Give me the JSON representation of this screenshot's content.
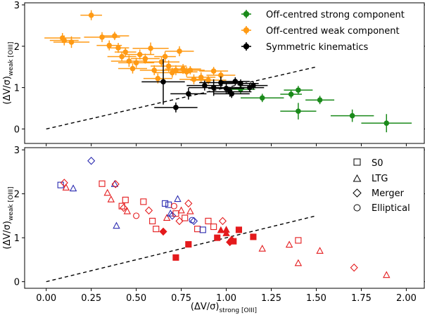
{
  "chart_data": [
    {
      "type": "scatter",
      "panel": "top",
      "xlim": [
        -0.12,
        2.1
      ],
      "ylim": [
        -0.35,
        3.05
      ],
      "yticks": [
        "0",
        "1",
        "2",
        "3"
      ],
      "ylabel": "(ΔV/σ)",
      "ylabel_sub": "weak [OIII]",
      "reference_line": {
        "style": "dashed",
        "from": [
          0.0,
          0.0
        ],
        "to": [
          1.5,
          1.5
        ]
      },
      "legend": {
        "placement": "top-right"
      },
      "series": [
        {
          "name": "Off-centred strong component",
          "color": "#1a8a1a",
          "points": [
            {
              "x": 1.36,
              "y": 0.84,
              "xerr": 0.06,
              "yerr": 0.1
            },
            {
              "x": 1.4,
              "y": 0.94,
              "xerr": 0.08,
              "yerr": 0.1
            },
            {
              "x": 1.4,
              "y": 0.43,
              "xerr": 0.1,
              "yerr": 0.2
            },
            {
              "x": 1.52,
              "y": 0.7,
              "xerr": 0.08,
              "yerr": 0.1
            },
            {
              "x": 1.7,
              "y": 0.32,
              "xerr": 0.12,
              "yerr": 0.15
            },
            {
              "x": 1.89,
              "y": 0.14,
              "xerr": 0.14,
              "yerr": 0.22
            },
            {
              "x": 1.2,
              "y": 0.75,
              "xerr": 0.12,
              "yerr": 0.1
            },
            {
              "x": 1.08,
              "y": 0.96,
              "xerr": 0.08,
              "yerr": 0.1
            }
          ]
        },
        {
          "name": "Off-centred weak component",
          "color": "#ff9a14",
          "points": [
            {
              "x": 0.25,
              "y": 2.75,
              "xerr": 0.06,
              "yerr": 0.12
            },
            {
              "x": 0.09,
              "y": 2.2,
              "xerr": 0.1,
              "yerr": 0.12
            },
            {
              "x": 0.1,
              "y": 2.14,
              "xerr": 0.08,
              "yerr": 0.12
            },
            {
              "x": 0.14,
              "y": 2.1,
              "xerr": 0.1,
              "yerr": 0.14
            },
            {
              "x": 0.31,
              "y": 2.22,
              "xerr": 0.1,
              "yerr": 0.12
            },
            {
              "x": 0.35,
              "y": 2.02,
              "xerr": 0.07,
              "yerr": 0.12
            },
            {
              "x": 0.38,
              "y": 2.25,
              "xerr": 0.08,
              "yerr": 0.1
            },
            {
              "x": 0.4,
              "y": 1.96,
              "xerr": 0.06,
              "yerr": 0.12
            },
            {
              "x": 0.42,
              "y": 1.75,
              "xerr": 0.08,
              "yerr": 0.12
            },
            {
              "x": 0.44,
              "y": 1.86,
              "xerr": 0.06,
              "yerr": 0.1
            },
            {
              "x": 0.46,
              "y": 1.64,
              "xerr": 0.1,
              "yerr": 0.14
            },
            {
              "x": 0.48,
              "y": 1.46,
              "xerr": 0.08,
              "yerr": 0.12
            },
            {
              "x": 0.5,
              "y": 1.6,
              "xerr": 0.1,
              "yerr": 0.12
            },
            {
              "x": 0.52,
              "y": 1.8,
              "xerr": 0.08,
              "yerr": 0.12
            },
            {
              "x": 0.55,
              "y": 1.7,
              "xerr": 0.08,
              "yerr": 0.12
            },
            {
              "x": 0.58,
              "y": 1.95,
              "xerr": 0.1,
              "yerr": 0.14
            },
            {
              "x": 0.6,
              "y": 1.42,
              "xerr": 0.08,
              "yerr": 0.12
            },
            {
              "x": 0.62,
              "y": 1.22,
              "xerr": 0.08,
              "yerr": 0.12
            },
            {
              "x": 0.64,
              "y": 1.62,
              "xerr": 0.1,
              "yerr": 0.12
            },
            {
              "x": 0.66,
              "y": 1.75,
              "xerr": 0.06,
              "yerr": 0.12
            },
            {
              "x": 0.68,
              "y": 1.52,
              "xerr": 0.1,
              "yerr": 0.14
            },
            {
              "x": 0.7,
              "y": 1.36,
              "xerr": 0.1,
              "yerr": 0.12
            },
            {
              "x": 0.72,
              "y": 1.42,
              "xerr": 0.08,
              "yerr": 0.12
            },
            {
              "x": 0.74,
              "y": 1.88,
              "xerr": 0.08,
              "yerr": 0.12
            },
            {
              "x": 0.76,
              "y": 1.45,
              "xerr": 0.1,
              "yerr": 0.12
            },
            {
              "x": 0.78,
              "y": 1.38,
              "xerr": 0.06,
              "yerr": 0.12
            },
            {
              "x": 0.8,
              "y": 1.42,
              "xerr": 0.08,
              "yerr": 0.1
            },
            {
              "x": 0.82,
              "y": 1.2,
              "xerr": 0.08,
              "yerr": 0.12
            },
            {
              "x": 0.86,
              "y": 1.25,
              "xerr": 0.08,
              "yerr": 0.12
            },
            {
              "x": 0.9,
              "y": 1.18,
              "xerr": 0.1,
              "yerr": 0.1
            },
            {
              "x": 0.93,
              "y": 1.4,
              "xerr": 0.08,
              "yerr": 0.1
            },
            {
              "x": 0.97,
              "y": 1.3,
              "xerr": 0.08,
              "yerr": 0.1
            }
          ]
        },
        {
          "name": "Symmetric kinematics",
          "color": "#000000",
          "points": [
            {
              "x": 0.65,
              "y": 1.14,
              "xerr": 0.12,
              "yerr": 0.55
            },
            {
              "x": 0.72,
              "y": 0.52,
              "xerr": 0.12,
              "yerr": 0.12
            },
            {
              "x": 0.79,
              "y": 0.85,
              "xerr": 0.1,
              "yerr": 0.14
            },
            {
              "x": 0.88,
              "y": 1.05,
              "xerr": 0.1,
              "yerr": 0.12
            },
            {
              "x": 0.93,
              "y": 1.0,
              "xerr": 0.14,
              "yerr": 0.2
            },
            {
              "x": 0.97,
              "y": 1.12,
              "xerr": 0.12,
              "yerr": 0.15
            },
            {
              "x": 1.0,
              "y": 0.98,
              "xerr": 0.1,
              "yerr": 0.12
            },
            {
              "x": 1.02,
              "y": 0.9,
              "xerr": 0.12,
              "yerr": 0.12
            },
            {
              "x": 1.03,
              "y": 0.85,
              "xerr": 0.1,
              "yerr": 0.1
            },
            {
              "x": 1.05,
              "y": 1.15,
              "xerr": 0.08,
              "yerr": 0.1
            },
            {
              "x": 1.08,
              "y": 1.1,
              "xerr": 0.1,
              "yerr": 0.1
            },
            {
              "x": 1.13,
              "y": 1.0,
              "xerr": 0.08,
              "yerr": 0.1
            },
            {
              "x": 1.15,
              "y": 1.05,
              "xerr": 0.08,
              "yerr": 0.1
            }
          ]
        }
      ]
    },
    {
      "type": "scatter",
      "panel": "bottom",
      "xlim": [
        -0.12,
        2.1
      ],
      "ylim": [
        -0.15,
        3.05
      ],
      "xticks": [
        "0.00",
        "0.25",
        "0.50",
        "0.75",
        "1.00",
        "1.25",
        "1.50",
        "1.75",
        "2.00"
      ],
      "yticks": [
        "0",
        "1",
        "2",
        "3"
      ],
      "xlabel": "(ΔV/σ)",
      "xlabel_sub": "strong [OIII]",
      "ylabel": "(ΔV/σ)",
      "ylabel_sub": "weak [OIII]",
      "reference_line": {
        "style": "dashed",
        "from": [
          0.0,
          0.0
        ],
        "to": [
          1.5,
          1.5
        ]
      },
      "legend": {
        "placement": "top-right",
        "entries": [
          {
            "name": "S0",
            "marker": "square"
          },
          {
            "name": "LTG",
            "marker": "triangle"
          },
          {
            "name": "Merger",
            "marker": "diamond"
          },
          {
            "name": "Elliptical",
            "marker": "circle"
          }
        ]
      },
      "colors": {
        "red": "#e41a1c",
        "blue": "#2a2ab0"
      },
      "points": [
        {
          "x": 0.25,
          "y": 2.75,
          "m": "diamond",
          "c": "blue",
          "f": false
        },
        {
          "x": 0.08,
          "y": 2.2,
          "m": "square",
          "c": "blue",
          "f": false
        },
        {
          "x": 0.1,
          "y": 2.25,
          "m": "diamond",
          "c": "red",
          "f": false
        },
        {
          "x": 0.11,
          "y": 2.14,
          "m": "triangle",
          "c": "red",
          "f": false
        },
        {
          "x": 0.15,
          "y": 2.12,
          "m": "triangle",
          "c": "blue",
          "f": false
        },
        {
          "x": 0.31,
          "y": 2.23,
          "m": "square",
          "c": "red",
          "f": false
        },
        {
          "x": 0.34,
          "y": 2.02,
          "m": "triangle",
          "c": "red",
          "f": false
        },
        {
          "x": 0.36,
          "y": 1.87,
          "m": "triangle",
          "c": "red",
          "f": false
        },
        {
          "x": 0.38,
          "y": 2.22,
          "m": "triangle",
          "c": "blue",
          "f": false
        },
        {
          "x": 0.385,
          "y": 2.22,
          "m": "diamond",
          "c": "red",
          "f": false
        },
        {
          "x": 0.39,
          "y": 1.27,
          "m": "triangle",
          "c": "blue",
          "f": false
        },
        {
          "x": 0.42,
          "y": 1.72,
          "m": "square",
          "c": "red",
          "f": false
        },
        {
          "x": 0.43,
          "y": 1.68,
          "m": "diamond",
          "c": "red",
          "f": false
        },
        {
          "x": 0.44,
          "y": 1.86,
          "m": "square",
          "c": "red",
          "f": false
        },
        {
          "x": 0.45,
          "y": 1.6,
          "m": "triangle",
          "c": "red",
          "f": false
        },
        {
          "x": 0.5,
          "y": 1.5,
          "m": "circle",
          "c": "red",
          "f": false
        },
        {
          "x": 0.54,
          "y": 1.82,
          "m": "square",
          "c": "red",
          "f": false
        },
        {
          "x": 0.57,
          "y": 1.62,
          "m": "diamond",
          "c": "red",
          "f": false
        },
        {
          "x": 0.59,
          "y": 1.38,
          "m": "square",
          "c": "red",
          "f": false
        },
        {
          "x": 0.61,
          "y": 1.2,
          "m": "square",
          "c": "red",
          "f": false
        },
        {
          "x": 0.65,
          "y": 1.14,
          "m": "diamond",
          "c": "red",
          "f": true
        },
        {
          "x": 0.66,
          "y": 1.78,
          "m": "square",
          "c": "blue",
          "f": false
        },
        {
          "x": 0.67,
          "y": 1.45,
          "m": "triangle",
          "c": "red",
          "f": false
        },
        {
          "x": 0.68,
          "y": 1.75,
          "m": "square",
          "c": "blue",
          "f": false
        },
        {
          "x": 0.69,
          "y": 1.55,
          "m": "triangle",
          "c": "blue",
          "f": false
        },
        {
          "x": 0.7,
          "y": 1.5,
          "m": "diamond",
          "c": "blue",
          "f": false
        },
        {
          "x": 0.71,
          "y": 1.72,
          "m": "circle",
          "c": "red",
          "f": false
        },
        {
          "x": 0.72,
          "y": 1.55,
          "m": "square",
          "c": "red",
          "f": false
        },
        {
          "x": 0.72,
          "y": 0.55,
          "m": "square",
          "c": "red",
          "f": true
        },
        {
          "x": 0.73,
          "y": 1.88,
          "m": "triangle",
          "c": "blue",
          "f": false
        },
        {
          "x": 0.74,
          "y": 1.38,
          "m": "diamond",
          "c": "red",
          "f": false
        },
        {
          "x": 0.75,
          "y": 1.62,
          "m": "triangle",
          "c": "red",
          "f": false
        },
        {
          "x": 0.77,
          "y": 1.45,
          "m": "square",
          "c": "red",
          "f": false
        },
        {
          "x": 0.79,
          "y": 1.78,
          "m": "diamond",
          "c": "red",
          "f": false
        },
        {
          "x": 0.8,
          "y": 1.6,
          "m": "triangle",
          "c": "red",
          "f": false
        },
        {
          "x": 0.81,
          "y": 1.4,
          "m": "circle",
          "c": "blue",
          "f": false
        },
        {
          "x": 0.82,
          "y": 1.38,
          "m": "diamond",
          "c": "blue",
          "f": false
        },
        {
          "x": 0.79,
          "y": 0.85,
          "m": "square",
          "c": "red",
          "f": true
        },
        {
          "x": 0.84,
          "y": 1.2,
          "m": "square",
          "c": "red",
          "f": false
        },
        {
          "x": 0.87,
          "y": 1.18,
          "m": "square",
          "c": "blue",
          "f": false
        },
        {
          "x": 0.9,
          "y": 1.38,
          "m": "square",
          "c": "red",
          "f": false
        },
        {
          "x": 0.93,
          "y": 1.25,
          "m": "square",
          "c": "red",
          "f": false
        },
        {
          "x": 0.95,
          "y": 1.0,
          "m": "square",
          "c": "red",
          "f": true
        },
        {
          "x": 0.97,
          "y": 1.17,
          "m": "triangle",
          "c": "red",
          "f": true
        },
        {
          "x": 0.98,
          "y": 1.38,
          "m": "diamond",
          "c": "red",
          "f": false
        },
        {
          "x": 1.0,
          "y": 1.1,
          "m": "triangle",
          "c": "red",
          "f": true
        },
        {
          "x": 1.0,
          "y": 1.18,
          "m": "triangle",
          "c": "red",
          "f": true
        },
        {
          "x": 1.02,
          "y": 0.9,
          "m": "diamond",
          "c": "red",
          "f": true
        },
        {
          "x": 1.03,
          "y": 0.95,
          "m": "diamond",
          "c": "red",
          "f": true
        },
        {
          "x": 1.04,
          "y": 0.92,
          "m": "square",
          "c": "red",
          "f": true
        },
        {
          "x": 1.07,
          "y": 1.18,
          "m": "square",
          "c": "red",
          "f": true
        },
        {
          "x": 1.15,
          "y": 1.02,
          "m": "square",
          "c": "red",
          "f": true
        },
        {
          "x": 1.2,
          "y": 0.75,
          "m": "triangle",
          "c": "red",
          "f": false
        },
        {
          "x": 1.35,
          "y": 0.84,
          "m": "triangle",
          "c": "red",
          "f": false
        },
        {
          "x": 1.4,
          "y": 0.94,
          "m": "square",
          "c": "red",
          "f": false
        },
        {
          "x": 1.4,
          "y": 0.42,
          "m": "triangle",
          "c": "red",
          "f": false
        },
        {
          "x": 1.52,
          "y": 0.7,
          "m": "triangle",
          "c": "red",
          "f": false
        },
        {
          "x": 1.71,
          "y": 0.32,
          "m": "diamond",
          "c": "red",
          "f": false
        },
        {
          "x": 1.89,
          "y": 0.15,
          "m": "triangle",
          "c": "red",
          "f": false
        }
      ]
    }
  ]
}
